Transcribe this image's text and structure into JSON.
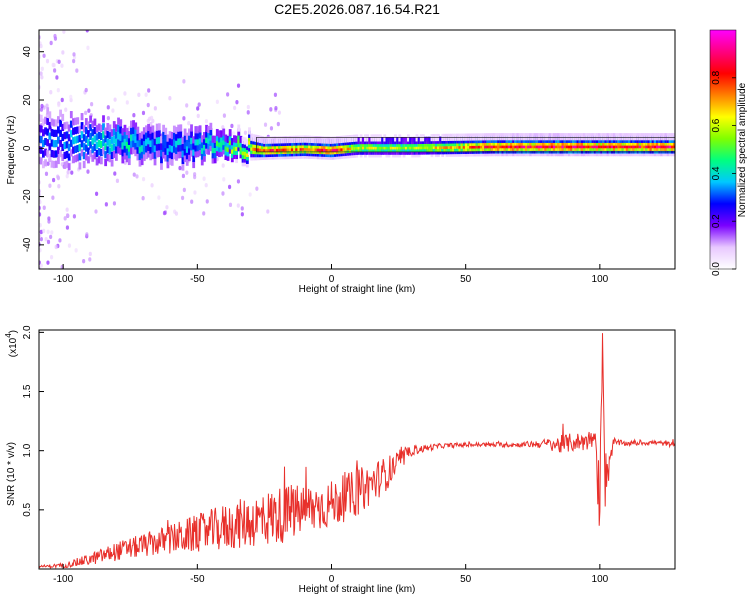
{
  "figure": {
    "title": "C2E5.2026.087.16.54.R21"
  },
  "chart_data": [
    {
      "type": "heatmap",
      "title": "C2E5.2026.087.16.54.R21",
      "xlabel": "Height of straight line (km)",
      "ylabel": "Frequency (Hz)",
      "xlim": [
        -109,
        128
      ],
      "ylim": [
        -50,
        49
      ],
      "xticks": [
        -100,
        -50,
        0,
        50,
        100
      ],
      "yticks": [
        40,
        20,
        0,
        -20,
        -40
      ],
      "colorbar": {
        "label": "Normalized spectral amplitude",
        "range": [
          0,
          1
        ],
        "ticks": [
          "0.0",
          "0.2",
          "0.4",
          "0.6",
          "0.8"
        ],
        "tick_values": [
          0,
          0.2,
          0.4,
          0.6,
          0.8
        ],
        "colors": [
          "#ffffff",
          "#e8c8ff",
          "#7a00ff",
          "#0000ff",
          "#00c8ff",
          "#00ff80",
          "#80ff00",
          "#ffff00",
          "#ff8000",
          "#ff0000",
          "#ff0080",
          "#ff00ff"
        ]
      },
      "ridge": [
        {
          "x": -105,
          "f": 4,
          "amp": 0.3,
          "spread": 8
        },
        {
          "x": -95,
          "f": 3,
          "amp": 0.35,
          "spread": 7
        },
        {
          "x": -85,
          "f": 3,
          "amp": 0.4,
          "spread": 6
        },
        {
          "x": -75,
          "f": 2,
          "amp": 0.4,
          "spread": 5
        },
        {
          "x": -65,
          "f": 1,
          "amp": 0.35,
          "spread": 5
        },
        {
          "x": -55,
          "f": 0,
          "amp": 0.35,
          "spread": 5
        },
        {
          "x": -45,
          "f": 2,
          "amp": 0.4,
          "spread": 4
        },
        {
          "x": -35,
          "f": 1,
          "amp": 0.55,
          "spread": 3
        },
        {
          "x": -25,
          "f": 0,
          "amp": 0.8,
          "spread": 2
        },
        {
          "x": -10,
          "f": 0.5,
          "amp": 0.75,
          "spread": 2
        },
        {
          "x": 0,
          "f": 0,
          "amp": 0.85,
          "spread": 2
        },
        {
          "x": 10,
          "f": 1,
          "amp": 0.6,
          "spread": 2
        },
        {
          "x": 30,
          "f": 1,
          "amp": 0.55,
          "spread": 2
        },
        {
          "x": 60,
          "f": 1.5,
          "amp": 0.8,
          "spread": 2
        },
        {
          "x": 90,
          "f": 1.5,
          "amp": 0.85,
          "spread": 2
        },
        {
          "x": 100,
          "f": 1.5,
          "amp": 0.8,
          "spread": 2
        },
        {
          "x": 128,
          "f": 1.5,
          "amp": 0.85,
          "spread": 2
        }
      ]
    },
    {
      "type": "line",
      "xlabel": "Height of straight line (km)",
      "ylabel": "SNR (10 * v/v)",
      "y_multiplier": "(x10",
      "y_multiplier_exp": "4",
      "y_multiplier_close": ")",
      "xlim": [
        -109,
        128
      ],
      "ylim": [
        0,
        2.02
      ],
      "xticks": [
        -100,
        -50,
        0,
        50,
        100
      ],
      "yticks": [
        0.5,
        1.0,
        1.5,
        2.0
      ],
      "ytick_labels": [
        "0.5",
        "1.0",
        "1.5",
        "2.0"
      ],
      "series": [
        {
          "name": "SNR",
          "color": "#e8302b",
          "x": [
            -109,
            -100,
            -90,
            -80,
            -70,
            -60,
            -50,
            -40,
            -30,
            -20,
            -10,
            0,
            10,
            20,
            30,
            40,
            50,
            60,
            70,
            80,
            85,
            90,
            95,
            98,
            100,
            101,
            102,
            105,
            110,
            120,
            128
          ],
          "y": [
            0.02,
            0.03,
            0.08,
            0.15,
            0.2,
            0.25,
            0.3,
            0.35,
            0.4,
            0.45,
            0.5,
            0.55,
            0.65,
            0.8,
            1.0,
            1.04,
            1.05,
            1.05,
            1.05,
            1.06,
            1.05,
            1.07,
            1.08,
            1.1,
            0.55,
            2.0,
            0.75,
            1.07,
            1.06,
            1.07,
            1.05
          ],
          "noise": [
            0.01,
            0.02,
            0.05,
            0.08,
            0.1,
            0.13,
            0.16,
            0.2,
            0.22,
            0.25,
            0.22,
            0.2,
            0.2,
            0.15,
            0.04,
            0.02,
            0.02,
            0.02,
            0.02,
            0.04,
            0.08,
            0.08,
            0.08,
            0.1,
            0.3,
            0.1,
            0.25,
            0.03,
            0.02,
            0.02,
            0.02
          ]
        }
      ]
    }
  ]
}
